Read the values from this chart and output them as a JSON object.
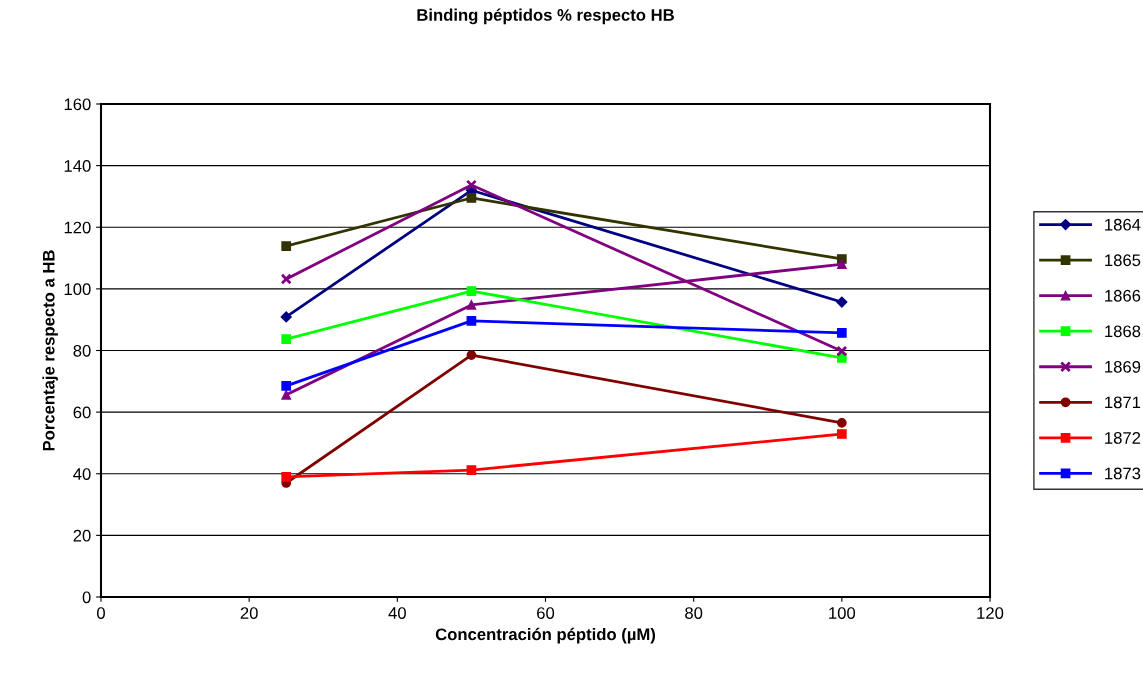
{
  "chart_data": {
    "type": "line",
    "title": "Binding péptidos % respecto HB",
    "xlabel": "Concentración péptido (µM)",
    "ylabel": "Porcentaje respecto a HB",
    "x": [
      25,
      50,
      100
    ],
    "xlim": [
      0,
      120
    ],
    "xticks": [
      0,
      20,
      40,
      60,
      80,
      100,
      120
    ],
    "ylim": [
      0,
      160
    ],
    "yticks": [
      0,
      20,
      40,
      60,
      80,
      100,
      120,
      140,
      160
    ],
    "grid": "y",
    "legend": "right",
    "line_style": "solid",
    "series": [
      {
        "name": "1864",
        "color": "#000080",
        "marker": "diamond",
        "values": [
          90.9,
          132,
          95.7
        ]
      },
      {
        "name": "1865",
        "color": "#333300",
        "marker": "square",
        "values": [
          113.9,
          129.5,
          109.7
        ]
      },
      {
        "name": "1866",
        "color": "#800080",
        "marker": "triangle",
        "values": [
          65.6,
          94.8,
          108
        ]
      },
      {
        "name": "1868",
        "color": "#00ff00",
        "marker": "square",
        "values": [
          83.7,
          99.3,
          77.6
        ]
      },
      {
        "name": "1869",
        "color": "#800080",
        "marker": "cross",
        "values": [
          103.2,
          133.7,
          79.8
        ]
      },
      {
        "name": "1871",
        "color": "#800000",
        "marker": "circle",
        "values": [
          37,
          78.5,
          56.5
        ]
      },
      {
        "name": "1872",
        "color": "#ff0000",
        "marker": "square",
        "values": [
          39,
          41.2,
          52.9
        ]
      },
      {
        "name": "1873",
        "color": "#0000ff",
        "marker": "square",
        "values": [
          68.5,
          89.6,
          85.7
        ]
      }
    ]
  }
}
